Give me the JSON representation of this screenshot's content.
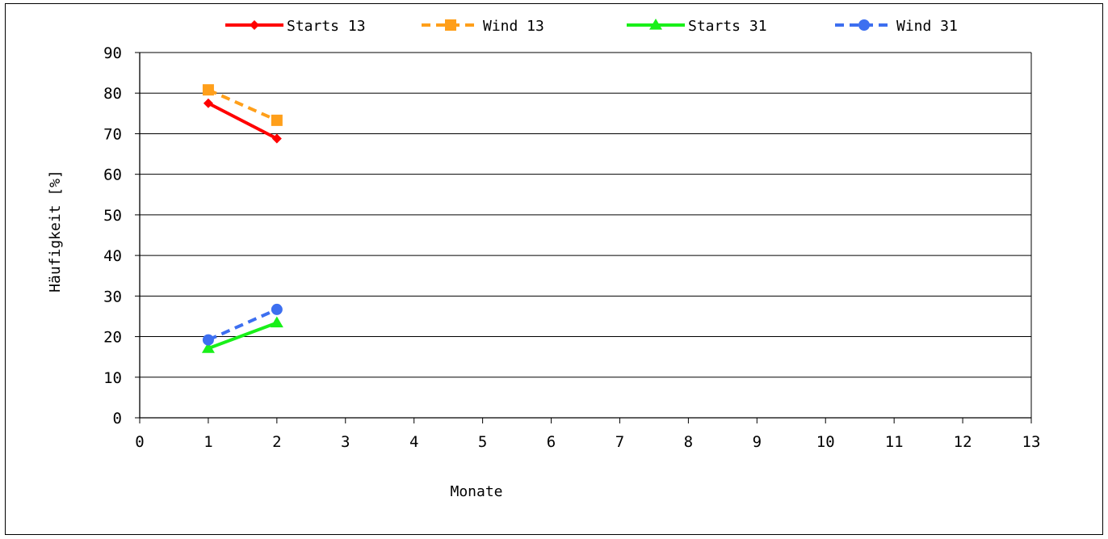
{
  "chart_data": {
    "type": "line",
    "title": "",
    "xlabel": "Monate",
    "ylabel": "Häufigkeit [%]",
    "xlim": [
      0,
      13
    ],
    "ylim": [
      0,
      90
    ],
    "xticks": [
      0,
      1,
      2,
      3,
      4,
      5,
      6,
      7,
      8,
      9,
      10,
      11,
      12,
      13
    ],
    "yticks": [
      0,
      10,
      20,
      30,
      40,
      50,
      60,
      70,
      80,
      90
    ],
    "grid": "horizontal",
    "legend_position": "top",
    "series": [
      {
        "name": "Starts 13",
        "color": "#ff0000",
        "dash": "solid",
        "marker": "diamond",
        "x": [
          1,
          2
        ],
        "y": [
          77.5,
          68.8
        ]
      },
      {
        "name": "Wind 13",
        "color": "#ff9f1a",
        "dash": "dashed",
        "marker": "square",
        "x": [
          1,
          2
        ],
        "y": [
          80.8,
          73.3
        ]
      },
      {
        "name": "Starts 31",
        "color": "#19f019",
        "dash": "solid",
        "marker": "triangle",
        "x": [
          1,
          2
        ],
        "y": [
          17.1,
          23.4
        ]
      },
      {
        "name": "Wind 31",
        "color": "#3d6ff0",
        "dash": "dashed",
        "marker": "circle",
        "x": [
          1,
          2
        ],
        "y": [
          19.2,
          26.7
        ]
      }
    ]
  }
}
